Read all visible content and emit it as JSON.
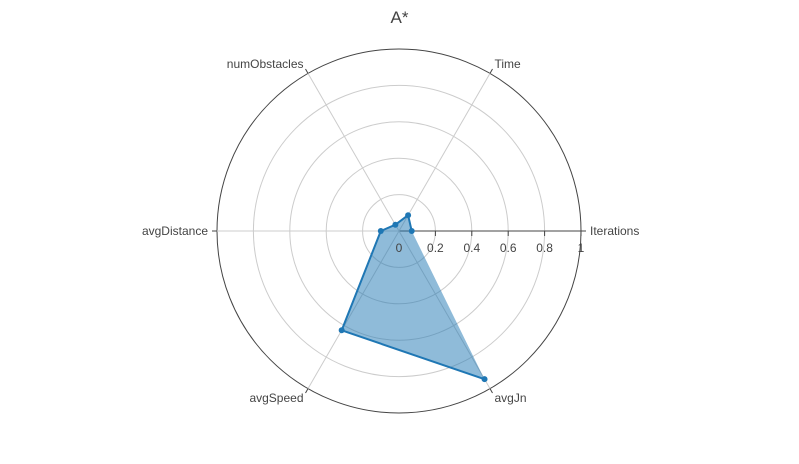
{
  "chart_data": {
    "type": "radar",
    "title": "A*",
    "axes": [
      "Iterations",
      "Time",
      "numObstacles",
      "avgDistance",
      "avgSpeed",
      "avgJn"
    ],
    "radial_ticks": [
      "0",
      "0.2",
      "0.4",
      "0.6",
      "0.8",
      "1"
    ],
    "radial_range": [
      0,
      1
    ],
    "series": [
      {
        "values": [
          0.07,
          0.1,
          0.04,
          0.1,
          0.63,
          0.94
        ]
      }
    ],
    "colors": {
      "line": "#1f77b4",
      "fill": "rgba(31,119,180,0.5)",
      "grid": "#cccccc",
      "outer": "#444444",
      "text": "#444444"
    }
  }
}
